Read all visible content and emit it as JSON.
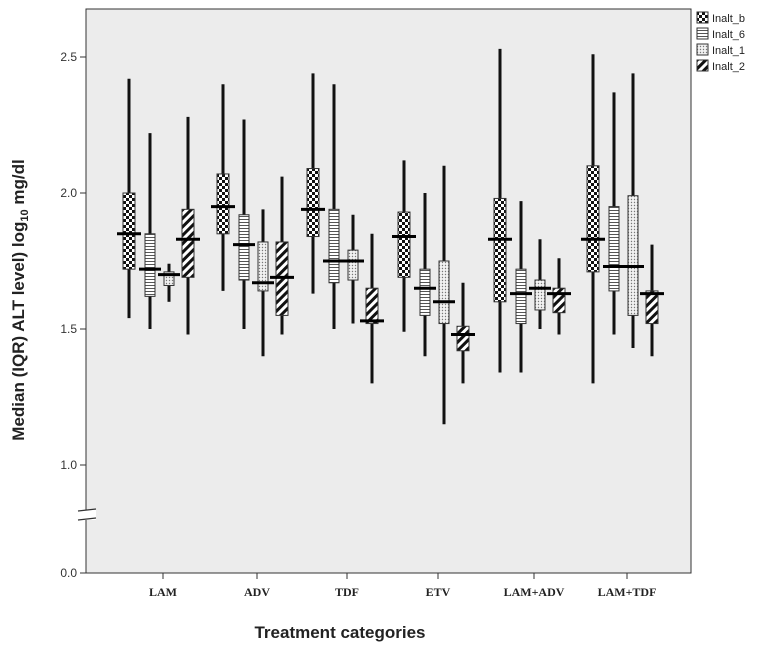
{
  "chart_data": {
    "type": "box",
    "xlabel": "Treatment categories",
    "ylabel_main": "Median (IQR) ALT level) log",
    "ylabel_sub": "10",
    "ylabel_unit": " mg/dl",
    "y_ticks": [
      "0.0",
      "1.0",
      "1.5",
      "2.0",
      "2.5"
    ],
    "axis_break": true,
    "legend_placement": "top-right",
    "categories": [
      "LAM",
      "ADV",
      "TDF",
      "ETV",
      "LAM+ADV",
      "LAM+TDF"
    ],
    "series": [
      {
        "name": "Inalt_b",
        "pattern": "checker",
        "boxes": [
          {
            "min": 1.54,
            "q1": 1.72,
            "median": 1.85,
            "q3": 2.0,
            "max": 2.42
          },
          {
            "min": 1.64,
            "q1": 1.85,
            "median": 1.95,
            "q3": 2.07,
            "max": 2.4
          },
          {
            "min": 1.63,
            "q1": 1.84,
            "median": 1.94,
            "q3": 2.09,
            "max": 2.44
          },
          {
            "min": 1.49,
            "q1": 1.69,
            "median": 1.84,
            "q3": 1.93,
            "max": 2.12
          },
          {
            "min": 1.34,
            "q1": 1.6,
            "median": 1.83,
            "q3": 1.98,
            "max": 2.53
          },
          {
            "min": 1.3,
            "q1": 1.71,
            "median": 1.83,
            "q3": 2.1,
            "max": 2.51
          }
        ]
      },
      {
        "name": "Inalt_6",
        "pattern": "hlines",
        "boxes": [
          {
            "min": 1.5,
            "q1": 1.62,
            "median": 1.72,
            "q3": 1.85,
            "max": 2.22
          },
          {
            "min": 1.5,
            "q1": 1.68,
            "median": 1.81,
            "q3": 1.92,
            "max": 2.27
          },
          {
            "min": 1.5,
            "q1": 1.67,
            "median": 1.75,
            "q3": 1.94,
            "max": 2.4
          },
          {
            "min": 1.4,
            "q1": 1.55,
            "median": 1.65,
            "q3": 1.72,
            "max": 2.0
          },
          {
            "min": 1.34,
            "q1": 1.52,
            "median": 1.63,
            "q3": 1.72,
            "max": 1.97
          },
          {
            "min": 1.48,
            "q1": 1.64,
            "median": 1.73,
            "q3": 1.95,
            "max": 2.37
          }
        ]
      },
      {
        "name": "Inalt_1",
        "pattern": "dots",
        "boxes": [
          {
            "min": 1.6,
            "q1": 1.66,
            "median": 1.7,
            "q3": 1.71,
            "max": 1.74
          },
          {
            "min": 1.4,
            "q1": 1.64,
            "median": 1.67,
            "q3": 1.82,
            "max": 1.94
          },
          {
            "min": 1.52,
            "q1": 1.68,
            "median": 1.75,
            "q3": 1.79,
            "max": 1.92
          },
          {
            "min": 1.15,
            "q1": 1.52,
            "median": 1.6,
            "q3": 1.75,
            "max": 2.1
          },
          {
            "min": 1.5,
            "q1": 1.57,
            "median": 1.65,
            "q3": 1.68,
            "max": 1.83
          },
          {
            "min": 1.43,
            "q1": 1.55,
            "median": 1.73,
            "q3": 1.99,
            "max": 2.44
          }
        ]
      },
      {
        "name": "Inalt_2",
        "pattern": "diagonal",
        "boxes": [
          {
            "min": 1.48,
            "q1": 1.69,
            "median": 1.83,
            "q3": 1.94,
            "max": 2.28
          },
          {
            "min": 1.48,
            "q1": 1.55,
            "median": 1.69,
            "q3": 1.82,
            "max": 2.06
          },
          {
            "min": 1.3,
            "q1": 1.52,
            "median": 1.53,
            "q3": 1.65,
            "max": 1.85
          },
          {
            "min": 1.3,
            "q1": 1.42,
            "median": 1.48,
            "q3": 1.51,
            "max": 1.67
          },
          {
            "min": 1.48,
            "q1": 1.56,
            "median": 1.63,
            "q3": 1.65,
            "max": 1.76
          },
          {
            "min": 1.4,
            "q1": 1.52,
            "median": 1.63,
            "q3": 1.64,
            "max": 1.81
          }
        ]
      }
    ]
  }
}
